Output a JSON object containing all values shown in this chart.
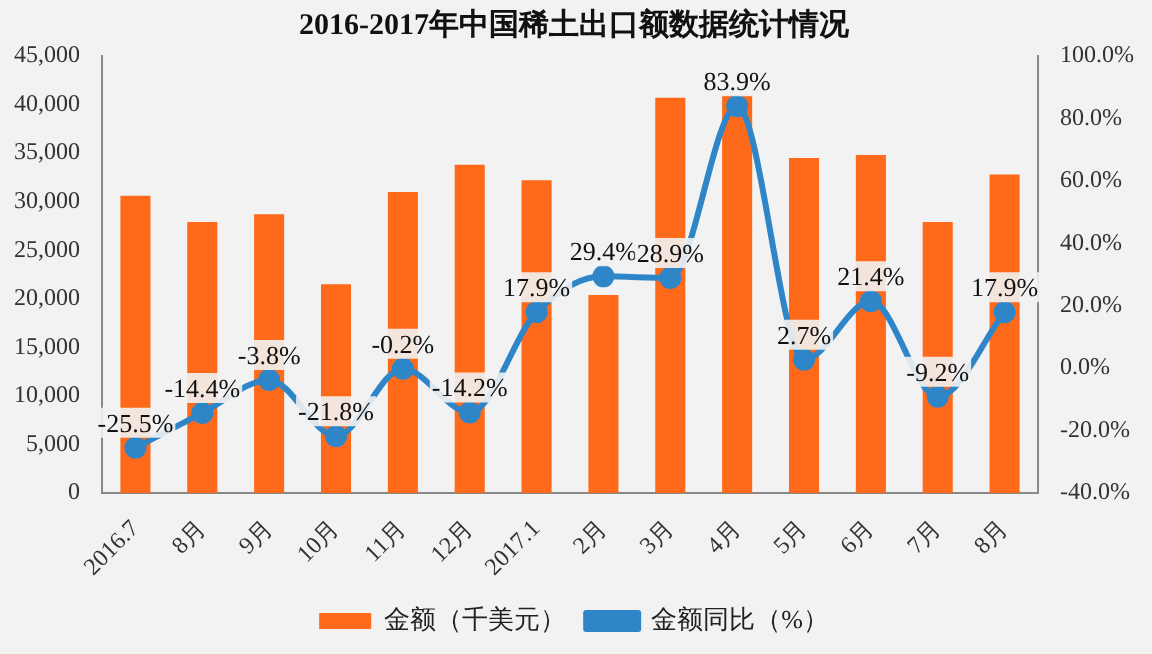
{
  "chart_data": {
    "type": "bar",
    "title": "2016-2017年中国稀土出口额数据统计情况",
    "categories": [
      "2016.7",
      "8月",
      "9月",
      "10月",
      "11月",
      "12月",
      "2017.1",
      "2月",
      "3月",
      "4月",
      "5月",
      "6月",
      "7月",
      "8月"
    ],
    "series": [
      {
        "name": "金额（千美元）",
        "color": "#fe6a1a",
        "values": [
          30600,
          27900,
          28700,
          21500,
          31000,
          33800,
          32200,
          20400,
          40700,
          41000,
          34500,
          34800,
          27900,
          32800
        ]
      },
      {
        "name": "金额同比（%）",
        "type": "line",
        "axis": "y2",
        "color": "#2e86c8",
        "values": [
          -25.5,
          -14.4,
          -3.8,
          -21.8,
          -0.2,
          -14.2,
          17.9,
          29.4,
          28.9,
          83.9,
          2.7,
          21.4,
          -9.2,
          17.9
        ],
        "value_labels": [
          "-25.5%",
          "-14.4%",
          "-3.8%",
          "-21.8%",
          "-0.2%",
          "-14.2%",
          "17.9%",
          "29.4%",
          "28.9%",
          "83.9%",
          "2.7%",
          "21.4%",
          "-9.2%",
          "17.9%"
        ]
      }
    ],
    "ylim": [
      0,
      45000
    ],
    "yticks": [
      {
        "value": 0,
        "label": "0"
      },
      {
        "value": 5000,
        "label": "5,000"
      },
      {
        "value": 10000,
        "label": "10,000"
      },
      {
        "value": 15000,
        "label": "15,000"
      },
      {
        "value": 20000,
        "label": "20,000"
      },
      {
        "value": 25000,
        "label": "25,000"
      },
      {
        "value": 30000,
        "label": "30,000"
      },
      {
        "value": 35000,
        "label": "35,000"
      },
      {
        "value": 40000,
        "label": "40,000"
      },
      {
        "value": 45000,
        "label": "45,000"
      }
    ],
    "y2lim": [
      -40,
      100
    ],
    "y2ticks": [
      {
        "value": -40,
        "label": "-40.0%"
      },
      {
        "value": -20,
        "label": "-20.0%"
      },
      {
        "value": 0,
        "label": "0.0%"
      },
      {
        "value": 20,
        "label": "20.0%"
      },
      {
        "value": 40,
        "label": "40.0%"
      },
      {
        "value": 60,
        "label": "60.0%"
      },
      {
        "value": 80,
        "label": "80.0%"
      },
      {
        "value": 100,
        "label": "100.0%"
      }
    ],
    "grid": false,
    "legend": "bottom",
    "marker": "circle",
    "line_style": "solid"
  }
}
